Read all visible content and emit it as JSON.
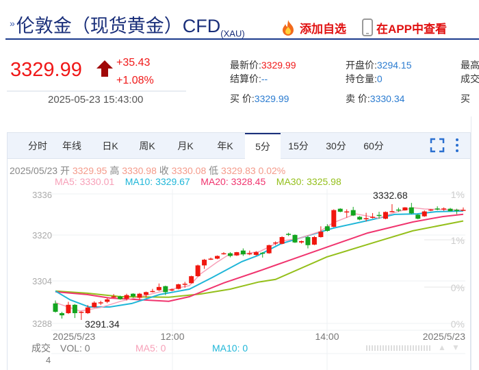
{
  "header": {
    "title": "伦敦金（现货黄金）CFD",
    "code": "(XAU)",
    "add_watch": "添加自选",
    "view_app": "在APP中查看"
  },
  "quote": {
    "price": "3329.99",
    "change": "+35.43",
    "change_pct": "+1.08%",
    "time": "2025-05-23 15:43:00",
    "fields": [
      {
        "label": "最新价:",
        "value": "3329.99",
        "red": true
      },
      {
        "label": "开盘价:",
        "value": "3294.15"
      },
      {
        "label": "最高",
        "value": ""
      },
      {
        "label": "结算价:",
        "value": "--"
      },
      {
        "label": "持仓量:",
        "value": "0"
      },
      {
        "label": "成交",
        "value": ""
      },
      {
        "label": "买  价:",
        "value": "3329.99"
      },
      {
        "label": "卖  价:",
        "value": "3330.34"
      },
      {
        "label": "买",
        "value": ""
      }
    ]
  },
  "tabs": [
    "分时",
    "年线",
    "日K",
    "周K",
    "月K",
    "年K",
    "5分",
    "15分",
    "30分",
    "60分"
  ],
  "selected_tab": "5分",
  "ohlc": {
    "date": "2025/05/23",
    "open_label": "开",
    "open": "3329.95",
    "high_label": "高",
    "high": "3330.98",
    "close_label": "收",
    "close": "3330.08",
    "low_label": "低",
    "low": "3329.83",
    "pct": "0.02%"
  },
  "ma_legend": {
    "ma5": "MA5: 3330.01",
    "ma10": "MA10: 3329.67",
    "ma20": "MA20: 3328.45",
    "ma30": "MA30: 3325.98"
  },
  "volume": {
    "label": "成交",
    "vol": "VOL: 0",
    "ma5": "MA5: 0",
    "ma10": "MA10: 0",
    "axis": "4"
  },
  "chart_data": {
    "type": "candlestick",
    "ylim": [
      3288,
      3336
    ],
    "y_ticks": [
      "3336",
      "3320",
      "3304",
      "3288"
    ],
    "right_ticks": [
      "1%",
      "1%",
      "0%",
      "0%"
    ],
    "x_ticks": [
      "2025/5/23",
      "12:00",
      "14:00",
      "2025/5/23"
    ],
    "annotations": {
      "max": "3332.68",
      "min": "3291.34"
    },
    "colors": {
      "up": "#f0170f",
      "down": "#13a51f",
      "ma5": "#f7a0b8",
      "ma10": "#1fb6d8",
      "ma20": "#f0346e",
      "ma30": "#94bf1a"
    },
    "candles": [
      [
        3295.4,
        3296.5,
        3292,
        3292.3
      ],
      [
        3291.8,
        3292.3,
        3289.8,
        3291.0
      ],
      [
        3291.8,
        3296,
        3291.5,
        3294.9
      ],
      [
        3294.9,
        3295.2,
        3290,
        3291.8
      ],
      [
        3292.0,
        3292.5,
        3289.3,
        3292.3
      ],
      [
        3291.8,
        3294.8,
        3291.5,
        3293.9
      ],
      [
        3294.0,
        3296.2,
        3293.8,
        3295.7
      ],
      [
        3295.6,
        3296.4,
        3294.8,
        3295.8
      ],
      [
        3296.0,
        3297.4,
        3295.5,
        3296.9
      ],
      [
        3297.8,
        3298.9,
        3297.5,
        3298.0
      ],
      [
        3298.0,
        3298.3,
        3296.8,
        3297.0
      ],
      [
        3297.2,
        3299.0,
        3296.5,
        3298.5
      ],
      [
        3299.0,
        3299.2,
        3297.5,
        3298.0
      ],
      [
        3297.5,
        3299.3,
        3296.9,
        3299.0
      ],
      [
        3298.6,
        3299.8,
        3297.5,
        3299.6
      ],
      [
        3299.8,
        3300.8,
        3299.5,
        3300.0
      ],
      [
        3300.3,
        3302.8,
        3300,
        3301.5
      ],
      [
        3301.8,
        3302,
        3298.5,
        3299.6
      ],
      [
        3300.2,
        3300.9,
        3299.9,
        3300.6
      ],
      [
        3300.8,
        3302.7,
        3300.6,
        3302.5
      ],
      [
        3302.6,
        3303.4,
        3301.2,
        3302.7
      ],
      [
        3302.9,
        3305.7,
        3302.8,
        3305.5
      ],
      [
        3305.5,
        3309.8,
        3305.3,
        3309.5
      ],
      [
        3309.5,
        3311.9,
        3308.2,
        3311.6
      ],
      [
        3311.8,
        3312.4,
        3311.5,
        3312.0
      ],
      [
        3312.0,
        3313.2,
        3311.8,
        3313.0
      ],
      [
        3313.8,
        3314.4,
        3313.5,
        3314.0
      ],
      [
        3314.0,
        3314.4,
        3312.5,
        3313.0
      ],
      [
        3313.2,
        3314.5,
        3313,
        3314.4
      ],
      [
        3315.0,
        3315.8,
        3313,
        3313.6
      ],
      [
        3313.6,
        3315.0,
        3313.3,
        3314.0
      ],
      [
        3313.4,
        3314.8,
        3313.0,
        3314.4
      ],
      [
        3314.2,
        3314.4,
        3312.4,
        3313.9
      ],
      [
        3314.0,
        3317.2,
        3313.8,
        3317.0
      ],
      [
        3317.8,
        3318.4,
        3317.0,
        3318.0
      ],
      [
        3317.5,
        3320.3,
        3317.3,
        3320.0
      ],
      [
        3321.2,
        3321.6,
        3320.4,
        3321.0
      ],
      [
        3320.8,
        3321.0,
        3317.8,
        3318.0
      ],
      [
        3318.0,
        3318.7,
        3317.6,
        3318.5
      ],
      [
        3320.0,
        3320.5,
        3315.8,
        3317.0
      ],
      [
        3317.2,
        3320.4,
        3317.0,
        3320.0
      ],
      [
        3320.0,
        3324.0,
        3319.8,
        3322.0
      ],
      [
        3324.0,
        3324.8,
        3322.0,
        3322.3
      ],
      [
        3323.8,
        3330.3,
        3323.6,
        3330.0
      ],
      [
        3330.5,
        3330.7,
        3329.2,
        3329.4
      ],
      [
        3329.3,
        3330.3,
        3327.2,
        3329.5
      ],
      [
        3330.0,
        3331.2,
        3327.8,
        3328.0
      ],
      [
        3327.5,
        3327.8,
        3326.2,
        3326.5
      ],
      [
        3326.6,
        3329.0,
        3325.8,
        3327.0
      ],
      [
        3327.2,
        3328.9,
        3326.9,
        3327.5
      ],
      [
        3328.2,
        3329.4,
        3326.8,
        3328.0
      ],
      [
        3326.8,
        3329.5,
        3326.6,
        3329.3
      ],
      [
        3329.4,
        3332.2,
        3329.2,
        3329.6
      ],
      [
        3330.2,
        3330.9,
        3329.3,
        3330.0
      ],
      [
        3329.9,
        3331.1,
        3329.8,
        3331.0
      ],
      [
        3331.0,
        3332.68,
        3328.5,
        3328.8
      ],
      [
        3328.3,
        3328.5,
        3326.6,
        3326.8
      ],
      [
        3327.7,
        3329.9,
        3327.5,
        3329.5
      ],
      [
        3330.0,
        3330.4,
        3329.6,
        3330.2
      ],
      [
        3330.6,
        3331.4,
        3329.9,
        3330.4
      ],
      [
        3330.4,
        3331.0,
        3329.7,
        3330.6
      ],
      [
        3330.5,
        3330.8,
        3329.6,
        3329.6
      ],
      [
        3330.1,
        3330.5,
        3328.5,
        3330.0
      ],
      [
        3329.95,
        3330.98,
        3329.83,
        3330.08
      ]
    ],
    "ma5": [
      [
        0,
        3295.7
      ],
      [
        3.8,
        3292.6
      ],
      [
        7,
        3293.9
      ],
      [
        10.1,
        3296.2
      ],
      [
        13.6,
        3298.2
      ],
      [
        17.5,
        3300.5
      ],
      [
        20.7,
        3302
      ],
      [
        22.4,
        3306.3
      ],
      [
        24.9,
        3310.6
      ],
      [
        26.6,
        3313.2
      ],
      [
        29.5,
        3313.9
      ],
      [
        31.6,
        3314.7
      ],
      [
        34.8,
        3318.5
      ],
      [
        37.6,
        3319.5
      ],
      [
        40.8,
        3322
      ],
      [
        42.9,
        3325.3
      ],
      [
        46.4,
        3328.6
      ],
      [
        49.9,
        3327
      ],
      [
        52.4,
        3329.1
      ],
      [
        55.2,
        3330.9
      ],
      [
        57,
        3330.4
      ],
      [
        63,
        3330.01
      ]
    ],
    "ma10": [
      [
        0,
        3300
      ],
      [
        2.3,
        3296.7
      ],
      [
        5.2,
        3294.1
      ],
      [
        8.4,
        3294.1
      ],
      [
        11.8,
        3295.4
      ],
      [
        16.1,
        3298.7
      ],
      [
        20.7,
        3300.7
      ],
      [
        24.2,
        3305
      ],
      [
        28.8,
        3310.9
      ],
      [
        31.3,
        3313.2
      ],
      [
        34.8,
        3317.5
      ],
      [
        42.9,
        3323.3
      ],
      [
        48.2,
        3326.1
      ],
      [
        52.4,
        3328.4
      ],
      [
        55.9,
        3328.6
      ],
      [
        58.8,
        3329.4
      ],
      [
        63,
        3329.67
      ]
    ],
    "ma20": [
      [
        0,
        3299.7
      ],
      [
        4.9,
        3298.7
      ],
      [
        8.4,
        3297.4
      ],
      [
        13.6,
        3296.7
      ],
      [
        17.5,
        3296.2
      ],
      [
        20.7,
        3297.9
      ],
      [
        26,
        3303
      ],
      [
        31.3,
        3307.3
      ],
      [
        34,
        3309.6
      ],
      [
        42.2,
        3316.5
      ],
      [
        48.2,
        3321.5
      ],
      [
        55.2,
        3325.6
      ],
      [
        59.8,
        3327.6
      ],
      [
        63,
        3328.45
      ]
    ],
    "ma30": [
      [
        0,
        3300
      ],
      [
        4.9,
        3299.2
      ],
      [
        10.1,
        3297.9
      ],
      [
        17.5,
        3297.7
      ],
      [
        22.4,
        3298.9
      ],
      [
        27,
        3300.7
      ],
      [
        31.3,
        3303.3
      ],
      [
        34,
        3304.3
      ],
      [
        41.9,
        3312.6
      ],
      [
        49.9,
        3318.5
      ],
      [
        55.2,
        3322.3
      ],
      [
        63,
        3325.98
      ]
    ]
  }
}
